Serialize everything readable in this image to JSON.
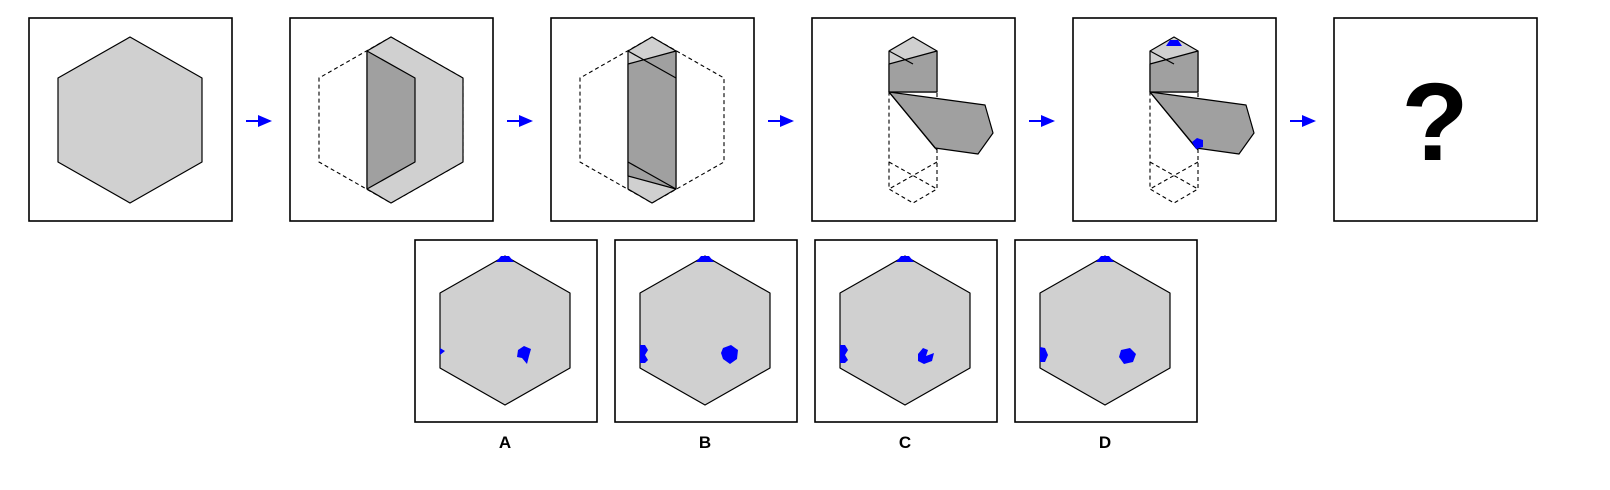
{
  "question_mark": "?",
  "options": [
    {
      "label": "A"
    },
    {
      "label": "B"
    },
    {
      "label": "C"
    },
    {
      "label": "D"
    }
  ],
  "colors": {
    "paper": "#d0d0d0",
    "folded": "#a0a0a0",
    "hole": "#0000ff",
    "arrow": "#0000ff"
  }
}
